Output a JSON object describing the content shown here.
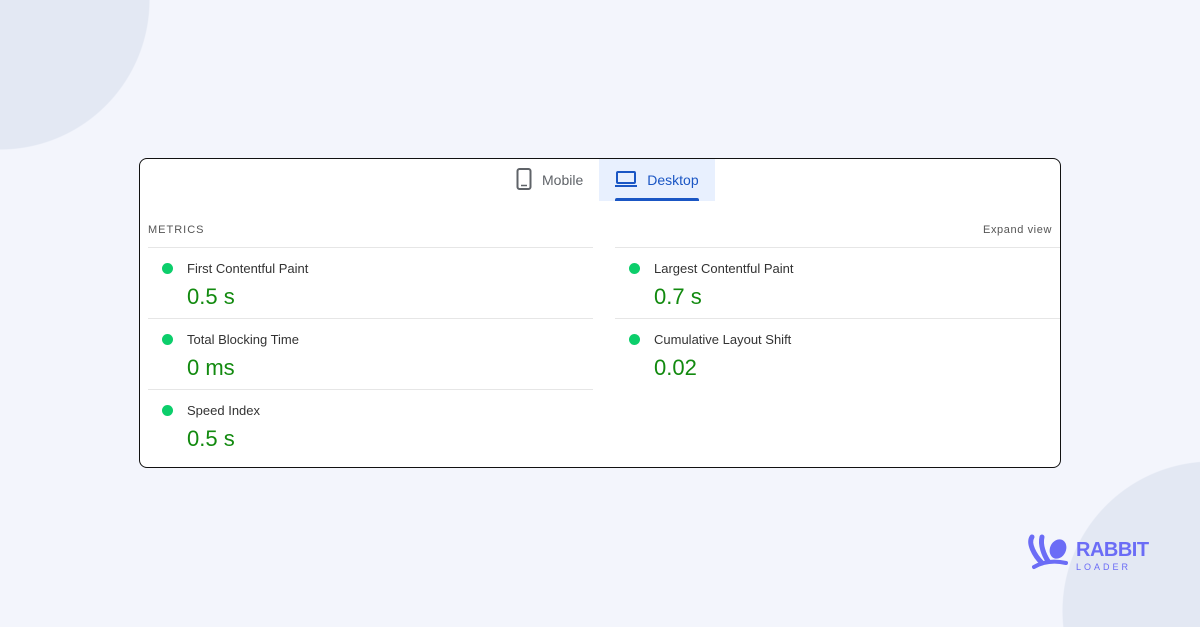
{
  "tabs": [
    {
      "label": "Mobile",
      "icon": "phone-icon",
      "active": false
    },
    {
      "label": "Desktop",
      "icon": "laptop-icon",
      "active": true
    }
  ],
  "section": {
    "title": "METRICS",
    "expand_label": "Expand view"
  },
  "metrics_left": [
    {
      "name": "First Contentful Paint",
      "value": "0.5 s",
      "status": "good"
    },
    {
      "name": "Total Blocking Time",
      "value": "0 ms",
      "status": "good"
    },
    {
      "name": "Speed Index",
      "value": "0.5 s",
      "status": "good"
    }
  ],
  "metrics_right": [
    {
      "name": "Largest Contentful Paint",
      "value": "0.7 s",
      "status": "good"
    },
    {
      "name": "Cumulative Layout Shift",
      "value": "0.02",
      "status": "good"
    }
  ],
  "colors": {
    "good": "#0cce6b",
    "value": "#128a0f",
    "accent": "#1a56c4",
    "brand": "#6b6cf6"
  },
  "logo": {
    "line1": "RABBIT",
    "line2": "LOADER"
  }
}
